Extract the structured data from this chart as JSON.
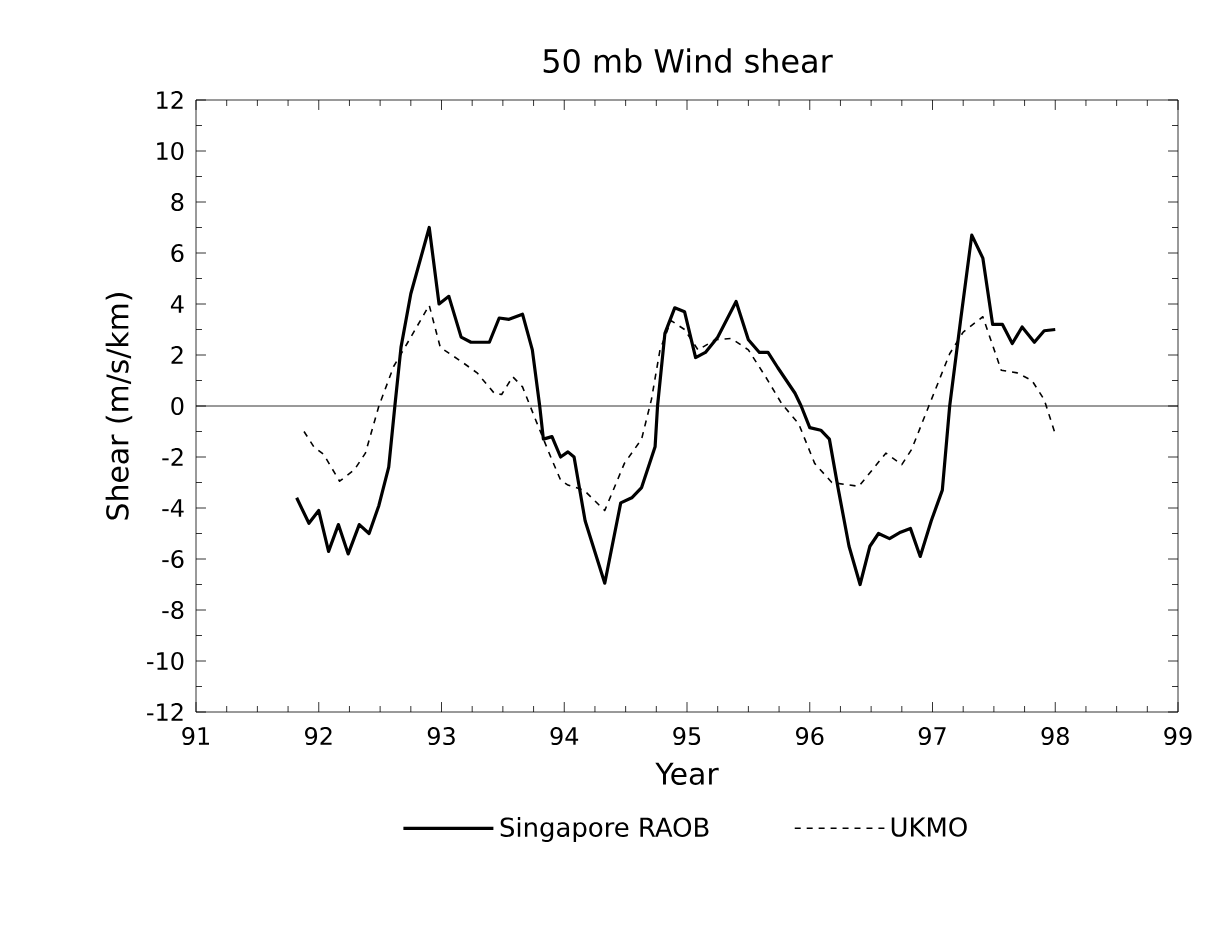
{
  "chart_data": {
    "type": "line",
    "title": "50 mb Wind shear",
    "xlabel": "Year",
    "ylabel": "Shear (m/s/km)",
    "xlim": [
      91,
      99
    ],
    "xticks": [
      91,
      92,
      93,
      94,
      95,
      96,
      97,
      98,
      99
    ],
    "ylim": [
      -12,
      12
    ],
    "yticks": [
      -12,
      -10,
      -8,
      -6,
      -4,
      -2,
      0,
      2,
      4,
      6,
      8,
      10,
      12
    ],
    "legend": "bottom",
    "grid": false,
    "ref_lines": [
      {
        "axis": "y",
        "value": 0,
        "color": "#000000",
        "line_style": "solid"
      }
    ],
    "series": [
      {
        "name": "Singapore RAOB",
        "color": "#000000",
        "line_style": "solid",
        "x": [
          91.82,
          91.92,
          92.0,
          92.08,
          92.16,
          92.24,
          92.33,
          92.41,
          92.49,
          92.57,
          92.62,
          92.67,
          92.75,
          92.9,
          92.98,
          93.06,
          93.16,
          93.24,
          93.39,
          93.47,
          93.55,
          93.66,
          93.74,
          93.8,
          93.83,
          93.9,
          93.97,
          94.03,
          94.08,
          94.17,
          94.33,
          94.46,
          94.55,
          94.63,
          94.74,
          94.76,
          94.82,
          94.9,
          94.98,
          95.07,
          95.15,
          95.25,
          95.4,
          95.5,
          95.59,
          95.66,
          95.74,
          95.88,
          95.93,
          96.0,
          96.09,
          96.16,
          96.23,
          96.32,
          96.41,
          96.49,
          96.56,
          96.65,
          96.74,
          96.82,
          96.9,
          96.99,
          97.08,
          97.14,
          97.23,
          97.32,
          97.41,
          97.49,
          97.57,
          97.65,
          97.73,
          97.83,
          97.91,
          98.0
        ],
        "values": [
          -3.6,
          -4.6,
          -4.1,
          -5.7,
          -4.65,
          -5.8,
          -4.65,
          -5.0,
          -3.9,
          -2.4,
          0,
          2.3,
          4.4,
          7.0,
          4.0,
          4.3,
          2.7,
          2.5,
          2.5,
          3.45,
          3.4,
          3.6,
          2.2,
          0,
          -1.3,
          -1.2,
          -2.0,
          -1.8,
          -2.0,
          -4.5,
          -6.95,
          -3.8,
          -3.6,
          -3.2,
          -1.6,
          0,
          2.85,
          3.85,
          3.7,
          1.9,
          2.1,
          2.7,
          4.1,
          2.6,
          2.1,
          2.1,
          1.5,
          0.5,
          0,
          -0.85,
          -0.95,
          -1.3,
          -3.2,
          -5.5,
          -7.0,
          -5.5,
          -5.0,
          -5.2,
          -4.95,
          -4.8,
          -5.9,
          -4.5,
          -3.3,
          0,
          3.4,
          6.7,
          5.8,
          3.2,
          3.2,
          2.45,
          3.1,
          2.5,
          2.95,
          3.0
        ]
      },
      {
        "name": "UKMO",
        "color": "#000000",
        "line_style": "dashed",
        "x": [
          91.88,
          91.96,
          92.04,
          92.17,
          92.29,
          92.38,
          92.49,
          92.61,
          92.72,
          92.9,
          92.99,
          93.16,
          93.29,
          93.43,
          93.49,
          93.58,
          93.66,
          93.78,
          93.89,
          93.97,
          94.03,
          94.16,
          94.33,
          94.49,
          94.63,
          94.71,
          94.78,
          94.87,
          94.98,
          95.09,
          95.23,
          95.36,
          95.5,
          95.64,
          95.77,
          95.91,
          96.04,
          96.18,
          96.4,
          96.51,
          96.62,
          96.75,
          96.83,
          96.97,
          97.14,
          97.25,
          97.41,
          97.56,
          97.69,
          97.81,
          97.91,
          98.0
        ],
        "values": [
          -1.0,
          -1.6,
          -1.9,
          -2.95,
          -2.5,
          -1.85,
          0,
          1.55,
          2.45,
          3.95,
          2.3,
          1.75,
          1.3,
          0.5,
          0.45,
          1.15,
          0.75,
          -0.7,
          -2.0,
          -2.9,
          -3.1,
          -3.3,
          -4.1,
          -2.25,
          -1.3,
          0.25,
          2.2,
          3.35,
          3.0,
          2.2,
          2.6,
          2.65,
          2.2,
          1.15,
          0.1,
          -0.7,
          -2.25,
          -3.0,
          -3.15,
          -2.5,
          -1.85,
          -2.3,
          -1.7,
          0,
          2.05,
          2.9,
          3.5,
          1.4,
          1.3,
          1.0,
          0.25,
          -1.1
        ]
      }
    ]
  }
}
